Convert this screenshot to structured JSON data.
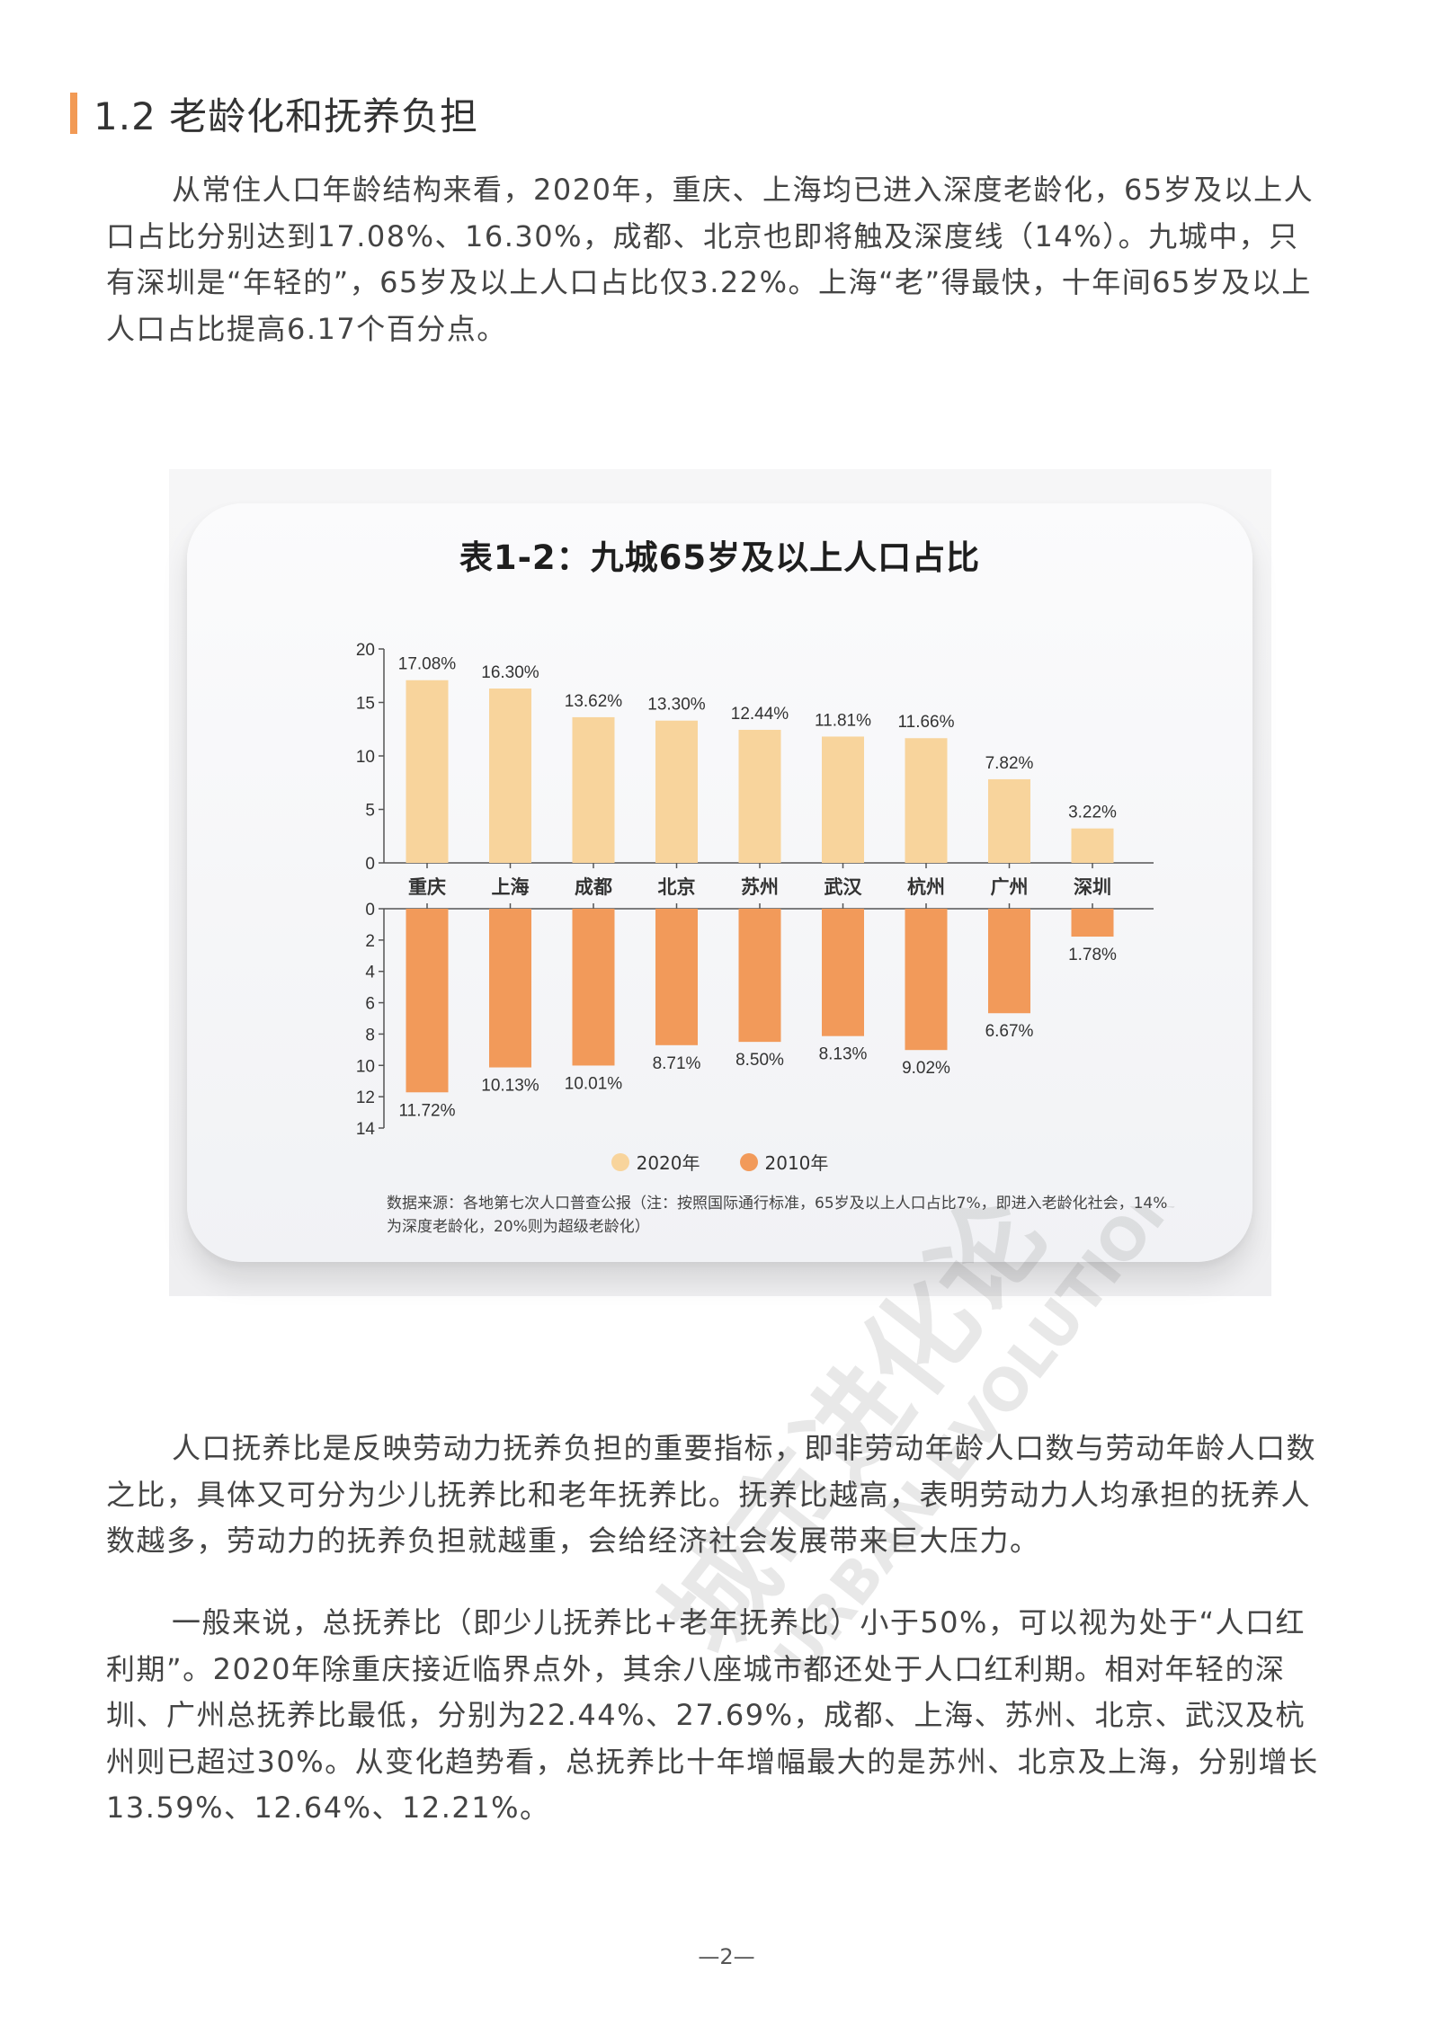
{
  "section": {
    "title": "1.2 老龄化和抚养负担"
  },
  "paragraphs": {
    "p1": "从常住人口年龄结构来看，2020年，重庆、上海均已进入深度老龄化，65岁及以上人口占比分别达到17.08%、16.30%，成都、北京也即将触及深度线（14%）。九城中，只有深圳是“年轻的”，65岁及以上人口占比仅3.22%。上海“老”得最快，十年间65岁及以上人口占比提高6.17个百分点。",
    "p2": "人口抚养比是反映劳动力抚养负担的重要指标，即非劳动年龄人口数与劳动年龄人口数之比，具体又可分为少儿抚养比和老年抚养比。抚养比越高，表明劳动力人均承担的抚养人数越多，劳动力的抚养负担就越重，会给经济社会发展带来巨大压力。",
    "p3": "一般来说，总抚养比（即少儿抚养比+老年抚养比）小于50%，可以视为处于“人口红利期”。2020年除重庆接近临界点外，其余八座城市都还处于人口红利期。相对年轻的深圳、广州总抚养比最低，分别为22.44%、27.69%，成都、上海、苏州、北京、武汉及杭州则已超过30%。从变化趋势看，总抚养比十年增幅最大的是苏州、北京及上海，分别增长13.59%、12.64%、12.21%。"
  },
  "figure": {
    "title": "表1-2：九城65岁及以上人口占比",
    "legend": [
      {
        "label": "2020年",
        "color": "#f8d49c"
      },
      {
        "label": "2010年",
        "color": "#f29a5a"
      }
    ],
    "source": "数据来源：各地第七次人口普查公报（注：按照国际通行标准，65岁及以上人口占比7%，即进入老龄化社会，14%为深度老龄化，20%则为超级老龄化）",
    "watermark_cn": "城市进化论",
    "watermark_en": "URBAN EVOLUTION"
  },
  "chart_data": {
    "type": "bar",
    "title": "表1-2：九城65岁及以上人口占比",
    "categories": [
      "重庆",
      "上海",
      "成都",
      "北京",
      "苏州",
      "武汉",
      "杭州",
      "广州",
      "深圳"
    ],
    "series": [
      {
        "name": "2020年",
        "color": "#f8d49c",
        "values": [
          17.08,
          16.3,
          13.62,
          13.3,
          12.44,
          11.81,
          11.66,
          7.82,
          3.22
        ],
        "labels": [
          "17.08%",
          "16.30%",
          "13.62%",
          "13.30%",
          "12.44%",
          "11.81%",
          "11.66%",
          "7.82%",
          "3.22%"
        ]
      },
      {
        "name": "2010年",
        "color": "#f29a5a",
        "values": [
          11.72,
          10.13,
          10.01,
          8.71,
          8.5,
          8.13,
          9.02,
          6.67,
          1.78
        ],
        "labels": [
          "11.72%",
          "10.13%",
          "10.01%",
          "8.71%",
          "8.50%",
          "8.13%",
          "9.02%",
          "6.67%",
          "1.78%"
        ]
      }
    ],
    "upper_axis": {
      "ylim": [
        0,
        20
      ],
      "ticks": [
        0,
        5,
        10,
        15,
        20
      ]
    },
    "lower_axis": {
      "ylim": [
        0,
        14
      ],
      "ticks": [
        0,
        2,
        4,
        6,
        8,
        10,
        12,
        14
      ],
      "inverted": true
    },
    "xlabel": "",
    "ylabel": "",
    "grid": false,
    "legend_position": "bottom"
  },
  "page": {
    "number": "—2—"
  }
}
